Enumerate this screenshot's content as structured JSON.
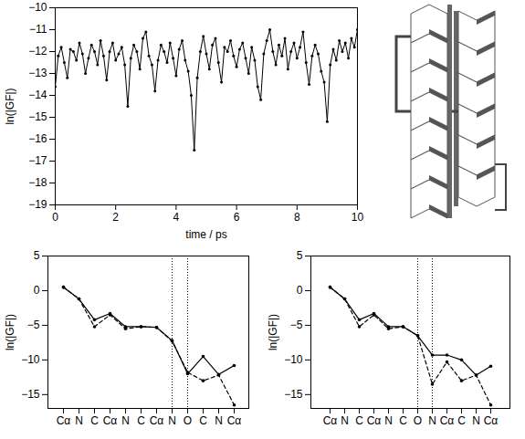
{
  "chart_data": [
    {
      "type": "line",
      "x_label": "time / ps",
      "y_label": "ln(|GF|)",
      "xlim": [
        0,
        10
      ],
      "xticks": [
        0,
        2,
        4,
        6,
        8,
        10
      ],
      "ylim": [
        -19,
        -10
      ],
      "yticks": [
        -19,
        -18,
        -17,
        -16,
        -15,
        -14,
        -13,
        -12,
        -11,
        -10
      ],
      "x": [
        0,
        0.1,
        0.2,
        0.3,
        0.4,
        0.5,
        0.6,
        0.7,
        0.8,
        0.9,
        1,
        1.1,
        1.2,
        1.3,
        1.4,
        1.5,
        1.6,
        1.7,
        1.8,
        1.9,
        2,
        2.1,
        2.2,
        2.3,
        2.4,
        2.5,
        2.6,
        2.7,
        2.8,
        2.9,
        3,
        3.1,
        3.2,
        3.3,
        3.4,
        3.5,
        3.6,
        3.7,
        3.8,
        3.9,
        4,
        4.1,
        4.2,
        4.3,
        4.4,
        4.5,
        4.6,
        4.7,
        4.8,
        4.9,
        5,
        5.1,
        5.2,
        5.3,
        5.4,
        5.5,
        5.6,
        5.7,
        5.8,
        5.9,
        6,
        6.1,
        6.2,
        6.3,
        6.4,
        6.5,
        6.6,
        6.7,
        6.8,
        6.9,
        7,
        7.1,
        7.2,
        7.3,
        7.4,
        7.5,
        7.6,
        7.7,
        7.8,
        7.9,
        8,
        8.1,
        8.2,
        8.3,
        8.4,
        8.5,
        8.6,
        8.7,
        8.8,
        8.9,
        9,
        9.1,
        9.2,
        9.3,
        9.4,
        9.5,
        9.6,
        9.7,
        9.8,
        9.9,
        10
      ],
      "series": [
        {
          "color": "#000000",
          "marker": "dot",
          "line_style": "solid",
          "values": [
            -13.6,
            -12.2,
            -11.8,
            -12.5,
            -13.2,
            -11.9,
            -12.0,
            -12.4,
            -11.6,
            -12.1,
            -13.0,
            -12.3,
            -11.7,
            -12.0,
            -12.6,
            -11.5,
            -12.2,
            -13.3,
            -12.0,
            -11.6,
            -12.4,
            -12.1,
            -11.8,
            -12.6,
            -14.5,
            -12.3,
            -11.7,
            -12.0,
            -12.8,
            -11.4,
            -11.1,
            -12.2,
            -12.6,
            -13.8,
            -12.4,
            -11.7,
            -12.0,
            -12.5,
            -11.6,
            -12.3,
            -13.1,
            -11.9,
            -11.5,
            -12.4,
            -12.9,
            -14.0,
            -16.5,
            -13.2,
            -12.0,
            -11.3,
            -12.1,
            -12.8,
            -11.7,
            -11.4,
            -12.5,
            -13.4,
            -11.8,
            -12.0,
            -11.5,
            -12.2,
            -12.7,
            -11.9,
            -11.6,
            -12.3,
            -13.0,
            -11.8,
            -12.4,
            -13.6,
            -14.2,
            -12.1,
            -11.5,
            -11.0,
            -12.0,
            -12.6,
            -11.7,
            -12.2,
            -11.4,
            -12.8,
            -12.0,
            -11.6,
            -12.3,
            -11.8,
            -11.1,
            -12.5,
            -13.5,
            -12.2,
            -11.7,
            -12.1,
            -12.9,
            -13.4,
            -15.2,
            -12.6,
            -11.9,
            -12.4,
            -11.5,
            -12.0,
            -11.6,
            -12.3,
            -11.4,
            -11.8,
            -11.0
          ]
        }
      ]
    },
    {
      "type": "line",
      "y_label": "ln(|GF|)",
      "categories": [
        "Cα",
        "N",
        "C",
        "Cα",
        "N",
        "C",
        "Cα",
        "N",
        "O",
        "C",
        "N",
        "Cα"
      ],
      "ylim": [
        -17,
        5
      ],
      "yticks": [
        -15,
        -10,
        -5,
        0,
        5
      ],
      "vertical_lines_at": [
        7,
        8
      ],
      "series": [
        {
          "color": "#000000",
          "marker": "dot",
          "line_style": "solid",
          "values": [
            0.5,
            -1.2,
            -4.2,
            -3.3,
            -5.2,
            -5.2,
            -5.3,
            -7.2,
            -12.0,
            -9.5,
            -12.1,
            -10.8
          ]
        },
        {
          "color": "#000000",
          "marker": "dot",
          "line_style": "dashed",
          "values": [
            0.5,
            -1.2,
            -5.2,
            -3.5,
            -5.5,
            -5.2,
            -5.3,
            -7.3,
            -11.8,
            -13.0,
            -12.2,
            -16.5
          ]
        }
      ]
    },
    {
      "type": "line",
      "y_label": "ln(|GF|)",
      "categories": [
        "Cα",
        "N",
        "C",
        "Cα",
        "N",
        "C",
        "O",
        "N",
        "Cα",
        "C",
        "N",
        "Cα"
      ],
      "ylim": [
        -17,
        5
      ],
      "yticks": [
        -15,
        -10,
        -5,
        0,
        5
      ],
      "vertical_lines_at": [
        6,
        7
      ],
      "series": [
        {
          "color": "#000000",
          "marker": "dot",
          "line_style": "solid",
          "values": [
            0.5,
            -1.2,
            -4.2,
            -3.3,
            -5.2,
            -5.2,
            -6.5,
            -9.3,
            -9.3,
            -10.0,
            -12.2,
            -10.9
          ]
        },
        {
          "color": "#000000",
          "marker": "dot",
          "line_style": "dashed",
          "values": [
            0.5,
            -1.2,
            -5.2,
            -3.5,
            -5.5,
            -5.2,
            -6.5,
            -13.5,
            -10.3,
            -13.0,
            -12.2,
            -16.5
          ]
        }
      ]
    }
  ]
}
